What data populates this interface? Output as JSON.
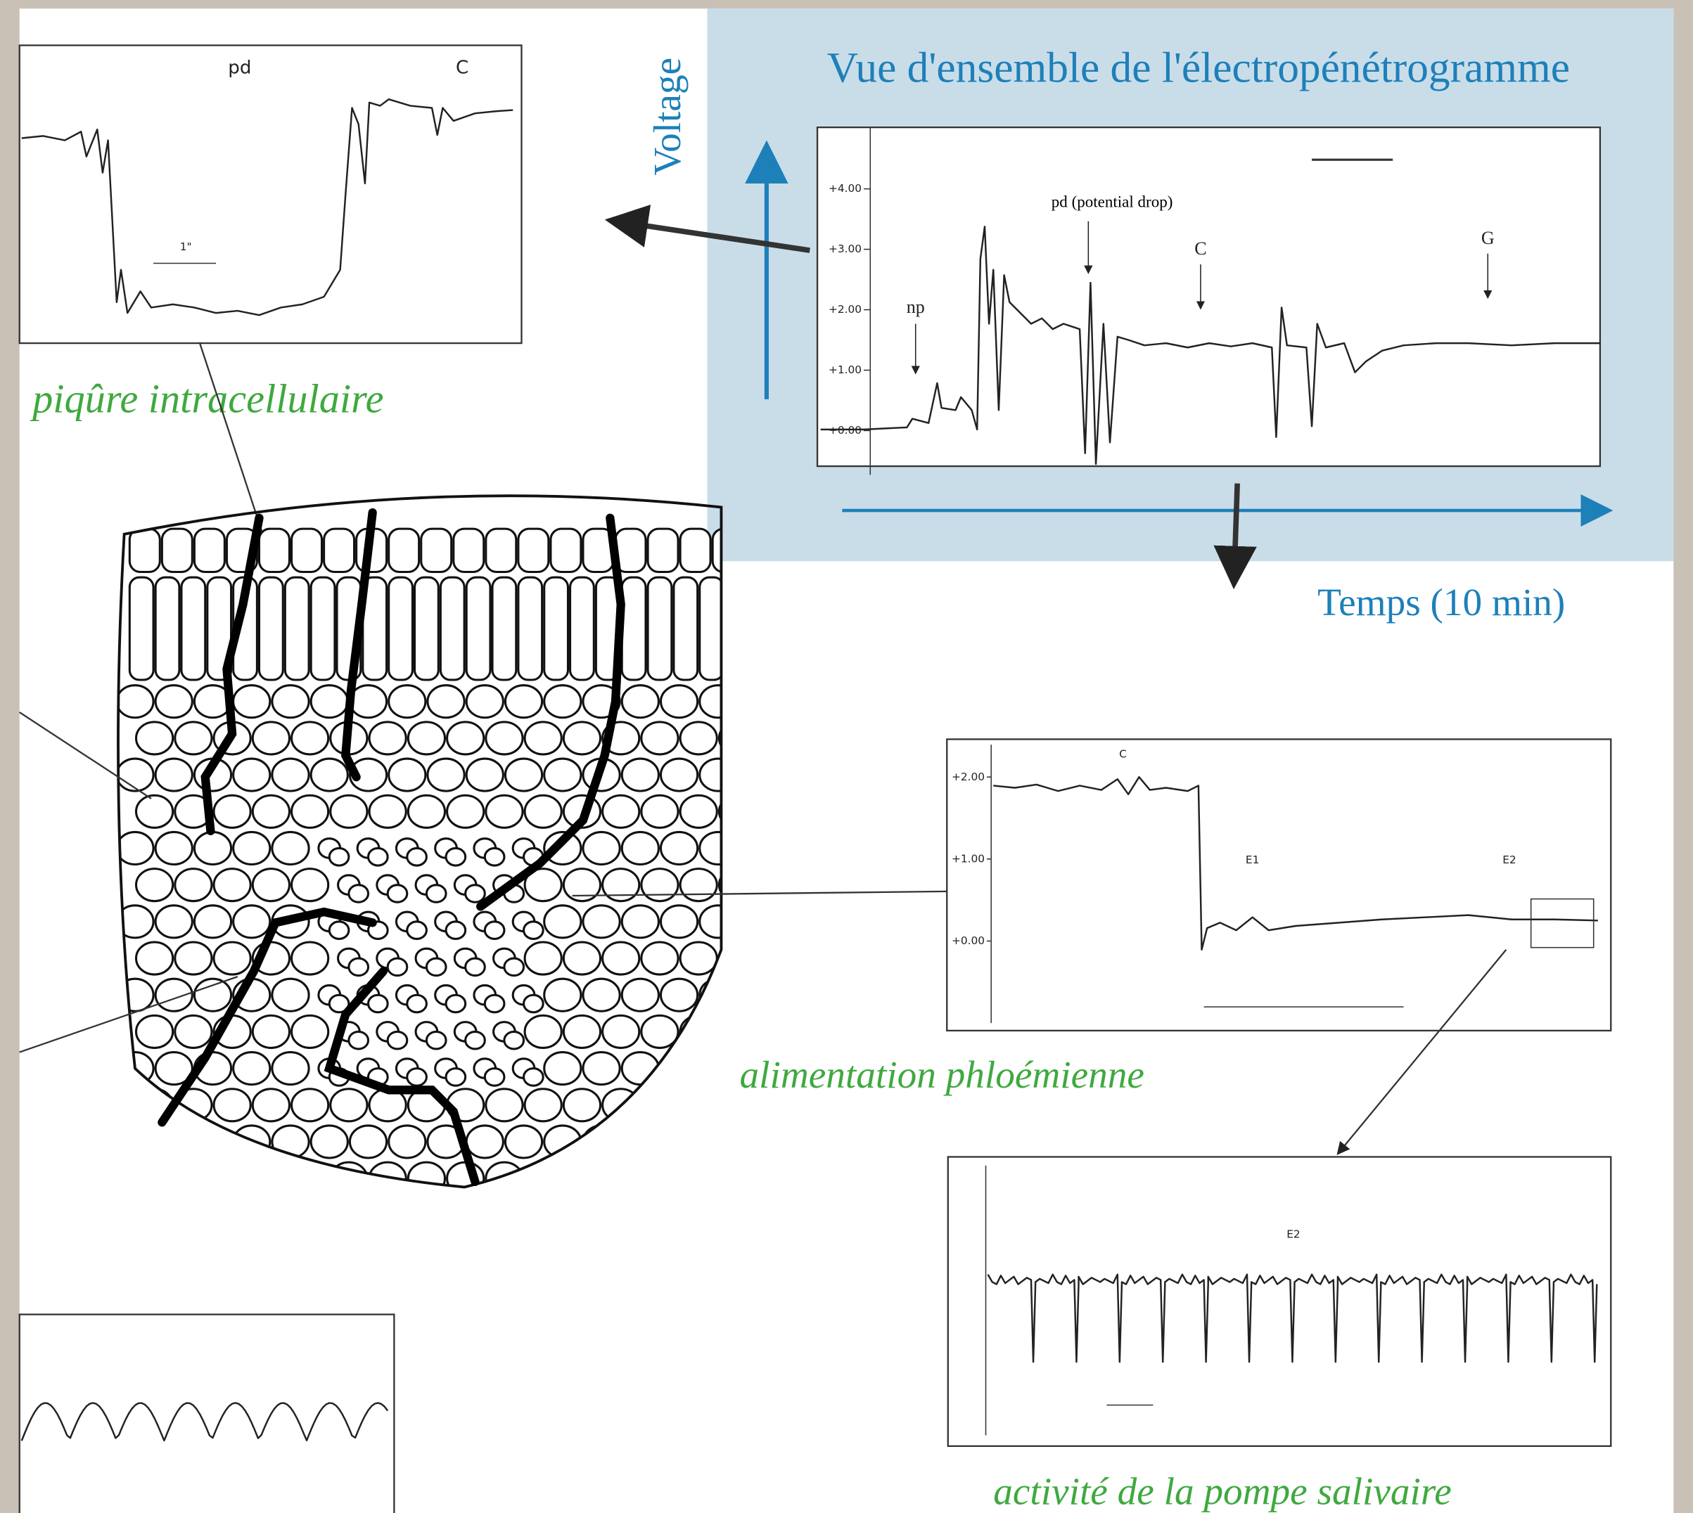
{
  "overview": {
    "title": "Vue d'ensemble de l'électropénétrogramme",
    "y_label": "Voltage",
    "x_label": "Temps (10 min)",
    "yticks": [
      "+4.00",
      "+3.00",
      "+2.00",
      "+1.00",
      "+0.00"
    ],
    "markers": [
      "np",
      "pd (potential drop)",
      "C",
      "G"
    ]
  },
  "intracellular": {
    "labels": [
      "pd",
      "C"
    ],
    "scale": "1\"",
    "caption": "piqûre intracellulaire"
  },
  "phloem": {
    "yticks": [
      "+2.00",
      "+1.00",
      "+0.00"
    ],
    "labels": [
      "C",
      "E1",
      "E2"
    ],
    "caption": "alimentation phloémienne"
  },
  "salivary": {
    "label": "E2",
    "caption": "activité de la pompe salivaire"
  }
}
